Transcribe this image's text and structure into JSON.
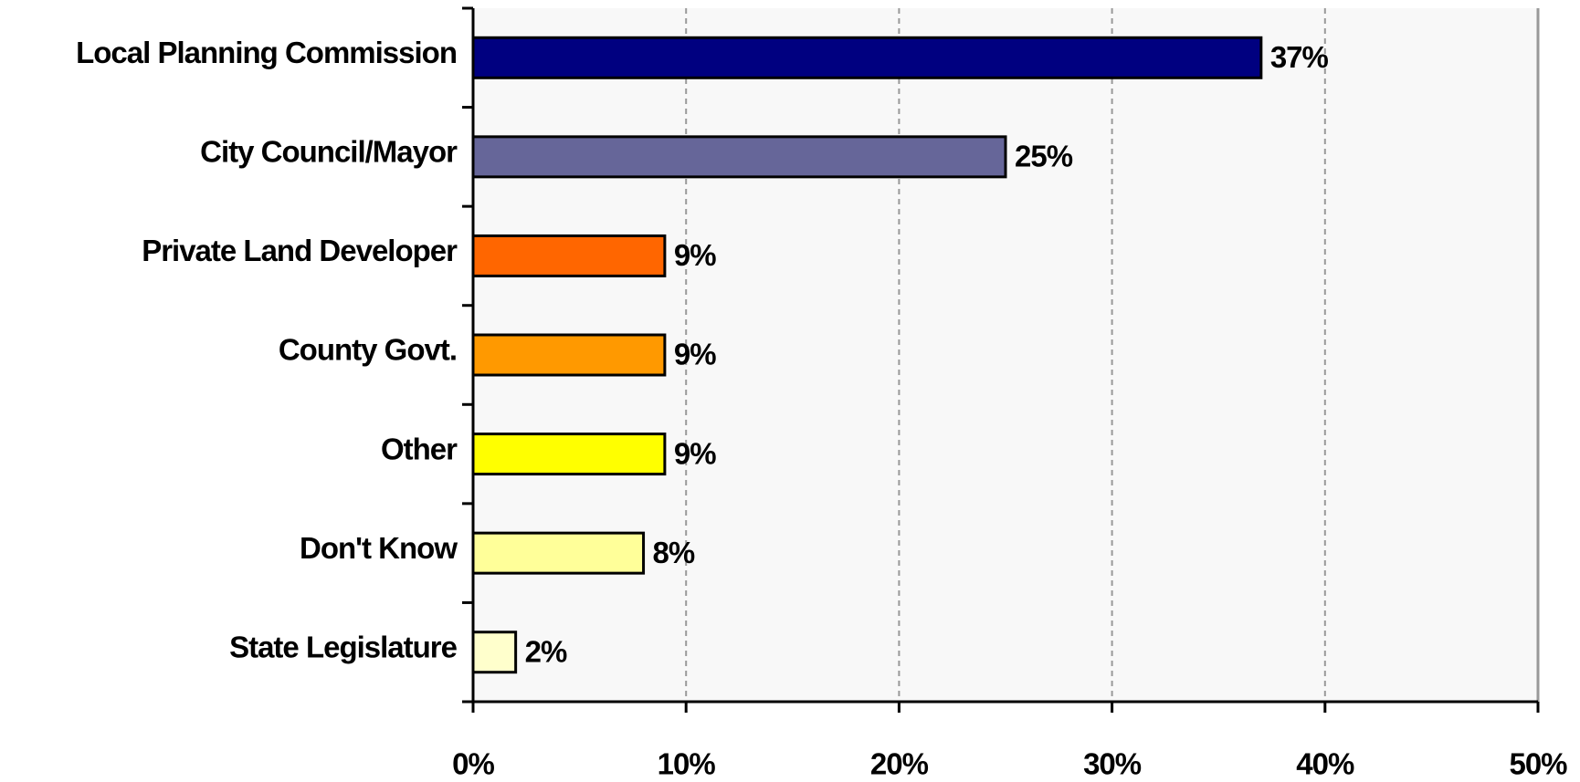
{
  "chart_data": {
    "type": "barh",
    "categories": [
      "Local Planning Commission",
      "City Council/Mayor",
      "Private Land Developer",
      "County Govt.",
      "Other",
      "Don't Know",
      "State Legislature"
    ],
    "values": [
      37,
      25,
      9,
      9,
      9,
      8,
      2
    ],
    "value_labels": [
      "37%",
      "25%",
      "9%",
      "9%",
      "9%",
      "8%",
      "2%"
    ],
    "colors": [
      "#000080",
      "#666699",
      "#ff6600",
      "#ff9900",
      "#ffff00",
      "#ffff99",
      "#ffffcc"
    ],
    "xlim": [
      0,
      50
    ],
    "xticks": [
      {
        "value": 0,
        "label": "0%"
      },
      {
        "value": 10,
        "label": "10%"
      },
      {
        "value": 20,
        "label": "20%"
      },
      {
        "value": 30,
        "label": "30%"
      },
      {
        "value": 40,
        "label": "40%"
      },
      {
        "value": 50,
        "label": "50%"
      }
    ],
    "grid": true
  }
}
